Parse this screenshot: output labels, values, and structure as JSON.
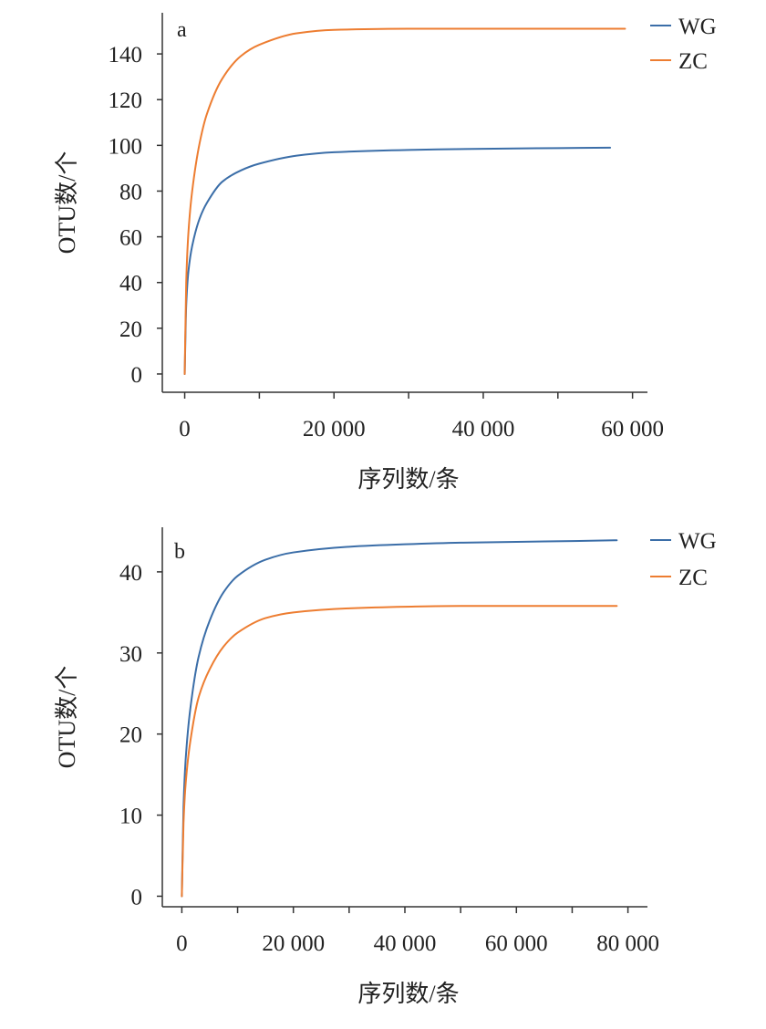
{
  "chart_data": [
    {
      "type": "line",
      "panel_label": "a",
      "xlabel": "序列数/条",
      "ylabel": "OTU数/个",
      "xlim": [
        -3000,
        62000
      ],
      "ylim": [
        -8,
        158
      ],
      "x_ticks": [
        0,
        20000,
        40000,
        60000
      ],
      "x_tick_labels": [
        "0",
        "20 000",
        "40 000",
        "60 000"
      ],
      "x_minor_ticks": [
        10000,
        30000,
        50000
      ],
      "y_ticks": [
        0,
        20,
        40,
        60,
        80,
        100,
        120,
        140
      ],
      "y_tick_labels": [
        "0",
        "20",
        "40",
        "60",
        "80",
        "100",
        "120",
        "140"
      ],
      "legend": {
        "position": "top-right"
      },
      "series": [
        {
          "name": "WG",
          "color": "#3b6ea8",
          "x": [
            0,
            200,
            500,
            1000,
            2000,
            3000,
            5000,
            7500,
            10000,
            15000,
            20000,
            30000,
            40000,
            50000,
            57000
          ],
          "y": [
            0,
            30,
            45,
            56,
            68,
            75,
            84,
            89,
            92,
            95.5,
            97,
            98,
            98.5,
            98.8,
            99
          ]
        },
        {
          "name": "ZC",
          "color": "#ed7d31",
          "x": [
            0,
            200,
            500,
            1000,
            2000,
            3000,
            5000,
            7500,
            10000,
            15000,
            20000,
            30000,
            40000,
            50000,
            59000
          ],
          "y": [
            0,
            40,
            62,
            80,
            101,
            114,
            129,
            139,
            144,
            149,
            150.5,
            151,
            151,
            151,
            151
          ]
        }
      ]
    },
    {
      "type": "line",
      "panel_label": "b",
      "xlabel": "序列数/条",
      "ylabel": "OTU数/个",
      "xlim": [
        -3500,
        83500
      ],
      "ylim": [
        -1.3,
        45.5
      ],
      "x_ticks": [
        0,
        20000,
        40000,
        60000,
        80000
      ],
      "x_tick_labels": [
        "0",
        "20 000",
        "40 000",
        "60 000",
        "80 000"
      ],
      "x_minor_ticks": [
        10000,
        30000,
        50000,
        70000
      ],
      "y_ticks": [
        0,
        10,
        20,
        30,
        40
      ],
      "y_tick_labels": [
        "0",
        "10",
        "20",
        "30",
        "40"
      ],
      "legend": {
        "position": "top-right"
      },
      "series": [
        {
          "name": "WG",
          "color": "#3b6ea8",
          "x": [
            0,
            300,
            700,
            1500,
            3000,
            5000,
            7500,
            10000,
            15000,
            20000,
            30000,
            40000,
            50000,
            60000,
            70000,
            78000
          ],
          "y": [
            0,
            11,
            17,
            23,
            29.5,
            34,
            37.5,
            39.5,
            41.5,
            42.4,
            43.1,
            43.4,
            43.6,
            43.7,
            43.8,
            43.9
          ]
        },
        {
          "name": "ZC",
          "color": "#ed7d31",
          "x": [
            0,
            300,
            700,
            1500,
            3000,
            5000,
            7500,
            10000,
            15000,
            20000,
            30000,
            40000,
            50000,
            60000,
            70000,
            78000
          ],
          "y": [
            0,
            9,
            14,
            19,
            24.5,
            28,
            30.8,
            32.5,
            34.3,
            35,
            35.5,
            35.7,
            35.8,
            35.8,
            35.8,
            35.8
          ]
        }
      ]
    }
  ]
}
